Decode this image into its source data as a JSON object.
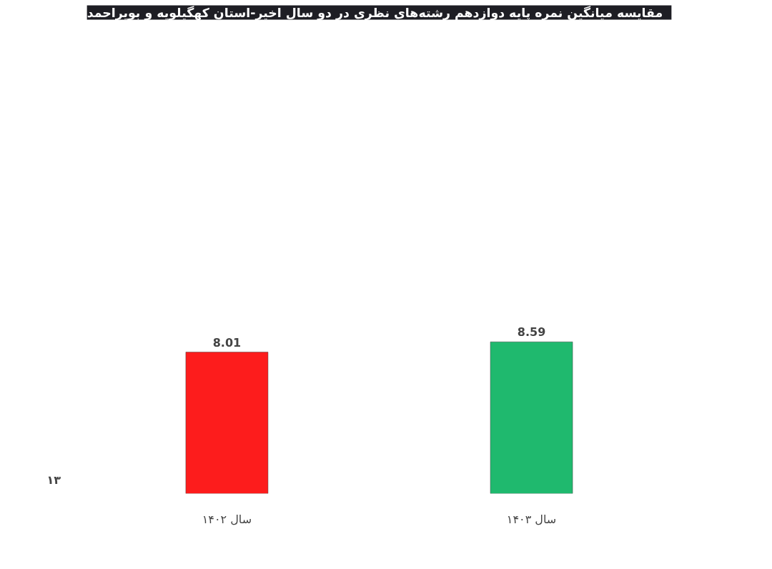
{
  "chart_data": {
    "type": "bar",
    "title": "مقایسه میانگین نمره  پایه دوازدهم  رشته‌های نظری در دو سال اخیر-استان کهگیلویه و بویراحمد",
    "categories": [
      "سال ۱۴۰۲",
      "سال ۱۴۰۳"
    ],
    "values": [
      8.01,
      8.59
    ],
    "colors": [
      "#fd1c1c",
      "#1fb96e"
    ],
    "data_labels": true,
    "annotations": [
      "۱۳"
    ]
  }
}
